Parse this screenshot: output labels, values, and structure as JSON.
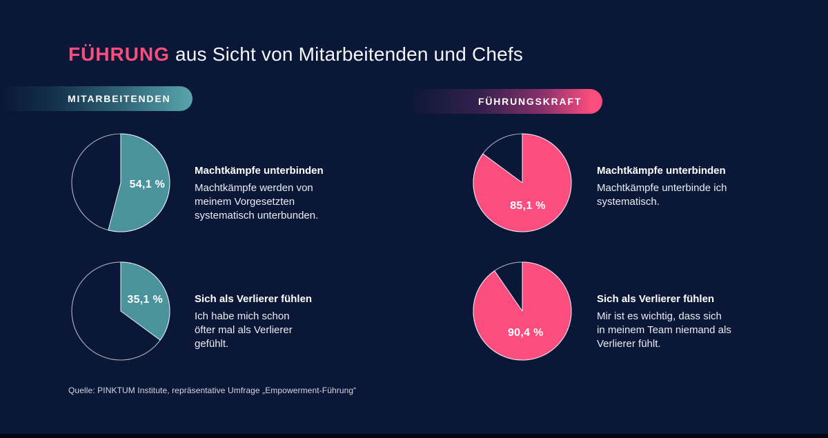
{
  "page": {
    "background_color": "#0a1736",
    "bottom_bar_color": "#030611"
  },
  "title": {
    "highlight": "FÜHRUNG",
    "rest": " aus Sicht von Mitarbeitenden und Chefs",
    "highlight_color": "#fb4d7e"
  },
  "groups": {
    "employees": {
      "label": "MITARBEITENDEN",
      "accent_color": "#4f98a2"
    },
    "leaders": {
      "label": "FÜHRUNGSKRAFT",
      "accent_color": "#fb4d7e"
    }
  },
  "source": "Quelle: PINKTUM Institute, repräsentative Umfrage „Empowerment-Führung“",
  "chart_data": [
    {
      "type": "pie",
      "group": "MITARBEITENDEN",
      "title": "Machtkämpfe unterbinden",
      "description": "Machtkämpfe werden von\nmeinem Vorgesetzten\nsystematisch unterbunden.",
      "value": 54.1,
      "value_label": "54,1 %",
      "color": "#4a929c",
      "remainder_color": "#0a1736",
      "start_angle_deg": 0,
      "direction": "clockwise",
      "outline_color": "#c9d1de",
      "label_pos": [
        0.74,
        0.52
      ]
    },
    {
      "type": "pie",
      "group": "MITARBEITENDEN",
      "title": "Sich als Verlierer fühlen",
      "description": "Ich habe mich schon\nöfter mal als Verlierer\ngefühlt.",
      "value": 35.1,
      "value_label": "35,1 %",
      "color": "#4a929c",
      "remainder_color": "#0a1736",
      "start_angle_deg": 0,
      "direction": "clockwise",
      "outline_color": "#c9d1de",
      "label_pos": [
        0.72,
        0.4
      ]
    },
    {
      "type": "pie",
      "group": "FÜHRUNGSKRAFT",
      "title": "Machtkämpfe unterbinden",
      "description": "Machtkämpfe unterbinde ich\nsystematisch.",
      "value": 85.1,
      "value_label": "85,1 %",
      "color": "#fb4d7e",
      "remainder_color": "#0a1736",
      "start_angle_deg": 0,
      "direction": "clockwise",
      "outline_color": "#c9d1de",
      "label_pos": [
        0.55,
        0.71
      ]
    },
    {
      "type": "pie",
      "group": "FÜHRUNGSKRAFT",
      "title": "Sich als Verlierer fühlen",
      "description": "Mir ist es wichtig, dass sich\nin meinem Team niemand als\nVerlierer fühlt.",
      "value": 90.4,
      "value_label": "90,4 %",
      "color": "#fb4d7e",
      "remainder_color": "#0a1736",
      "start_angle_deg": 0,
      "direction": "clockwise",
      "outline_color": "#c9d1de",
      "label_pos": [
        0.53,
        0.7
      ]
    }
  ]
}
